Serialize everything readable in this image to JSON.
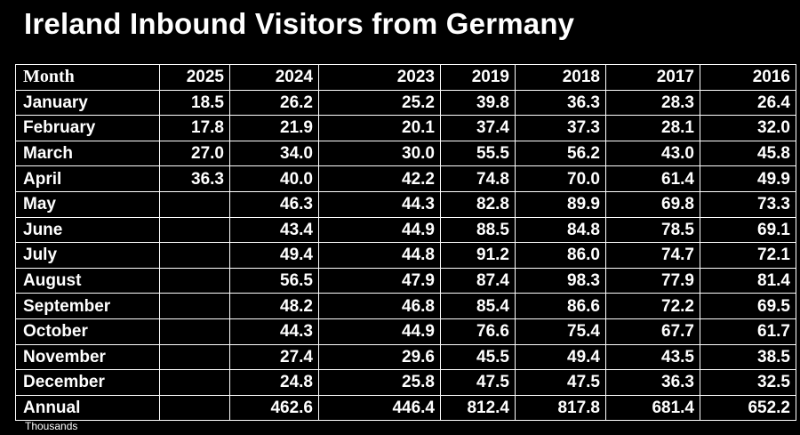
{
  "title": "Ireland Inbound Visitors from Germany",
  "footnote": "Thousands",
  "chart_data": {
    "type": "table",
    "title": "Ireland Inbound Visitors from Germany",
    "unit_note": "Thousands",
    "row_header": "Month",
    "columns": [
      "2025",
      "2024",
      "2023",
      "2019",
      "2018",
      "2017",
      "2016"
    ],
    "rows": [
      {
        "label": "January",
        "values": [
          "18.5",
          "26.2",
          "25.2",
          "39.8",
          "36.3",
          "28.3",
          "26.4"
        ]
      },
      {
        "label": "February",
        "values": [
          "17.8",
          "21.9",
          "20.1",
          "37.4",
          "37.3",
          "28.1",
          "32.0"
        ]
      },
      {
        "label": "March",
        "values": [
          "27.0",
          "34.0",
          "30.0",
          "55.5",
          "56.2",
          "43.0",
          "45.8"
        ]
      },
      {
        "label": "April",
        "values": [
          "36.3",
          "40.0",
          "42.2",
          "74.8",
          "70.0",
          "61.4",
          "49.9"
        ]
      },
      {
        "label": "May",
        "values": [
          "",
          "46.3",
          "44.3",
          "82.8",
          "89.9",
          "69.8",
          "73.3"
        ]
      },
      {
        "label": "June",
        "values": [
          "",
          "43.4",
          "44.9",
          "88.5",
          "84.8",
          "78.5",
          "69.1"
        ]
      },
      {
        "label": "July",
        "values": [
          "",
          "49.4",
          "44.8",
          "91.2",
          "86.0",
          "74.7",
          "72.1"
        ]
      },
      {
        "label": "August",
        "values": [
          "",
          "56.5",
          "47.9",
          "87.4",
          "98.3",
          "77.9",
          "81.4"
        ]
      },
      {
        "label": "September",
        "values": [
          "",
          "48.2",
          "46.8",
          "85.4",
          "86.6",
          "72.2",
          "69.5"
        ]
      },
      {
        "label": "October",
        "values": [
          "",
          "44.3",
          "44.9",
          "76.6",
          "75.4",
          "67.7",
          "61.7"
        ]
      },
      {
        "label": "November",
        "values": [
          "",
          "27.4",
          "29.6",
          "45.5",
          "49.4",
          "43.5",
          "38.5"
        ]
      },
      {
        "label": "December",
        "values": [
          "",
          "24.8",
          "25.8",
          "47.5",
          "47.5",
          "36.3",
          "32.5"
        ]
      },
      {
        "label": "Annual",
        "values": [
          "",
          "462.6",
          "446.4",
          "812.4",
          "817.8",
          "681.4",
          "652.2"
        ]
      }
    ]
  }
}
